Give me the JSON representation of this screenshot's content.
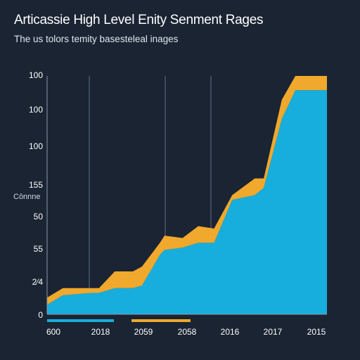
{
  "chart_data": {
    "type": "area",
    "title": "Articassie High Level Enity Senment Rages",
    "subtitle": "The us tolors temity basesteleal inages",
    "ylabel": "Cōnnne",
    "xlabel": "",
    "y_tick_labels": [
      "0",
      "2⁄4",
      "55",
      "50",
      "155",
      "100",
      "100",
      "100"
    ],
    "x_tick_labels": [
      "600",
      "2018",
      "2059",
      "2058",
      "2016",
      "2017",
      "2015"
    ],
    "ylim": [
      0,
      100
    ],
    "grid": true,
    "stacked": true,
    "x": [
      0,
      0.35,
      1.0,
      1.15,
      1.5,
      1.9,
      2.1,
      2.5,
      2.6,
      3.0,
      3.35,
      3.7,
      4.1,
      4.6,
      4.8,
      5.2,
      5.5,
      6.2
    ],
    "series": [
      {
        "name": "",
        "color": "#17aede",
        "values": [
          4,
          8,
          9,
          9,
          11,
          11,
          12,
          25,
          27,
          28,
          30,
          30,
          48,
          50,
          53,
          82,
          94,
          94
        ]
      },
      {
        "name": "",
        "color": "#f0a92c",
        "values": [
          3,
          3,
          2,
          2,
          7,
          7,
          8,
          5,
          6,
          4,
          7,
          6,
          2,
          7,
          4,
          8,
          6,
          6
        ]
      }
    ],
    "legend": [
      {
        "color": "#17aede"
      },
      {
        "color": "#f0a92c"
      }
    ]
  }
}
